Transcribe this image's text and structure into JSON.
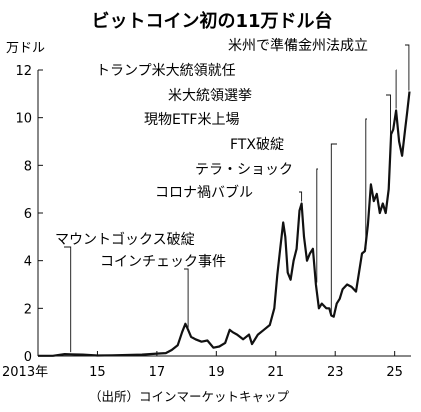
{
  "chart_data": {
    "type": "line",
    "title": "ビットコイン初の11万ドル台",
    "ylabel": "万ドル",
    "source": "（出所）コインマーケットキャップ",
    "ylim": [
      0,
      12
    ],
    "yticks": [
      "0",
      "2",
      "4",
      "6",
      "8",
      "10",
      "12"
    ],
    "xlim": [
      2013.0,
      2025.55
    ],
    "xticks": [
      {
        "x": 2013,
        "label": "2013年"
      },
      {
        "x": 2015,
        "label": "15"
      },
      {
        "x": 2017,
        "label": "17"
      },
      {
        "x": 2019,
        "label": "19"
      },
      {
        "x": 2021,
        "label": "21"
      },
      {
        "x": 2023,
        "label": "23"
      },
      {
        "x": 2025,
        "label": "25"
      }
    ],
    "grid": false,
    "color": "#111111",
    "series": [
      {
        "values": [
          [
            2013.0,
            0.01
          ],
          [
            2013.5,
            0.01
          ],
          [
            2013.9,
            0.08
          ],
          [
            2014.1,
            0.07
          ],
          [
            2014.5,
            0.06
          ],
          [
            2015.0,
            0.02
          ],
          [
            2015.5,
            0.03
          ],
          [
            2016.0,
            0.04
          ],
          [
            2016.5,
            0.06
          ],
          [
            2017.0,
            0.1
          ],
          [
            2017.3,
            0.12
          ],
          [
            2017.5,
            0.25
          ],
          [
            2017.7,
            0.45
          ],
          [
            2017.85,
            1.0
          ],
          [
            2017.96,
            1.35
          ],
          [
            2018.05,
            1.1
          ],
          [
            2018.15,
            0.8
          ],
          [
            2018.3,
            0.7
          ],
          [
            2018.5,
            0.6
          ],
          [
            2018.7,
            0.65
          ],
          [
            2018.9,
            0.35
          ],
          [
            2019.1,
            0.4
          ],
          [
            2019.3,
            0.55
          ],
          [
            2019.45,
            1.1
          ],
          [
            2019.55,
            1.0
          ],
          [
            2019.7,
            0.9
          ],
          [
            2019.9,
            0.7
          ],
          [
            2020.1,
            0.9
          ],
          [
            2020.2,
            0.5
          ],
          [
            2020.4,
            0.9
          ],
          [
            2020.6,
            1.1
          ],
          [
            2020.8,
            1.3
          ],
          [
            2020.95,
            2.0
          ],
          [
            2021.05,
            3.4
          ],
          [
            2021.15,
            4.5
          ],
          [
            2021.25,
            5.6
          ],
          [
            2021.32,
            5.0
          ],
          [
            2021.4,
            3.5
          ],
          [
            2021.5,
            3.2
          ],
          [
            2021.6,
            4.0
          ],
          [
            2021.7,
            4.5
          ],
          [
            2021.8,
            6.1
          ],
          [
            2021.87,
            6.4
          ],
          [
            2021.95,
            5.0
          ],
          [
            2022.05,
            4.0
          ],
          [
            2022.15,
            4.3
          ],
          [
            2022.25,
            4.5
          ],
          [
            2022.35,
            3.0
          ],
          [
            2022.45,
            2.0
          ],
          [
            2022.55,
            2.2
          ],
          [
            2022.7,
            2.0
          ],
          [
            2022.8,
            2.0
          ],
          [
            2022.87,
            1.7
          ],
          [
            2022.95,
            1.65
          ],
          [
            2023.05,
            2.2
          ],
          [
            2023.15,
            2.4
          ],
          [
            2023.25,
            2.8
          ],
          [
            2023.4,
            3.0
          ],
          [
            2023.55,
            2.9
          ],
          [
            2023.7,
            2.7
          ],
          [
            2023.8,
            3.5
          ],
          [
            2023.9,
            4.3
          ],
          [
            2024.0,
            4.4
          ],
          [
            2024.1,
            5.5
          ],
          [
            2024.2,
            7.2
          ],
          [
            2024.3,
            6.5
          ],
          [
            2024.4,
            6.8
          ],
          [
            2024.5,
            6.0
          ],
          [
            2024.6,
            6.4
          ],
          [
            2024.7,
            6.0
          ],
          [
            2024.8,
            7.0
          ],
          [
            2024.88,
            9.3
          ],
          [
            2024.95,
            9.5
          ],
          [
            2025.05,
            10.3
          ],
          [
            2025.15,
            9.0
          ],
          [
            2025.25,
            8.4
          ],
          [
            2025.35,
            9.5
          ],
          [
            2025.42,
            10.2
          ],
          [
            2025.5,
            11.1
          ]
        ]
      }
    ],
    "annotations": [
      {
        "text": "米州で準備金州法成立",
        "x": 2025.48,
        "y": 11.05
      },
      {
        "text": "トランプ米大統領就任",
        "x": 2025.05,
        "y": 10.3
      },
      {
        "text": "米大統領選挙",
        "x": 2024.86,
        "y": 9.2
      },
      {
        "text": "現物ETF米上場",
        "x": 2024.03,
        "y": 4.4
      },
      {
        "text": "FTX破綻",
        "x": 2022.87,
        "y": 1.7
      },
      {
        "text": "テラ・ショック",
        "x": 2022.38,
        "y": 3.0
      },
      {
        "text": "コロナ禍バブル",
        "x": 2021.87,
        "y": 6.4
      },
      {
        "text": "マウントゴックス破綻",
        "x": 2014.1,
        "y": 0.08
      },
      {
        "text": "コインチェック事件",
        "x": 2018.05,
        "y": 1.1
      }
    ]
  }
}
